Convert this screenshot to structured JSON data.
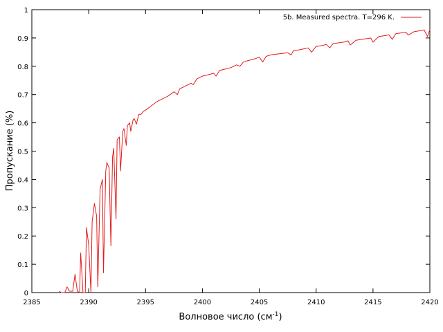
{
  "chart_data": {
    "type": "line",
    "title": "",
    "xlabel": "Волновое число (см",
    "xlabel_sup": "-1",
    "xlabel_tail": ")",
    "ylabel": "Пропускание (%)",
    "xlim": [
      2385,
      2420
    ],
    "ylim": [
      0,
      1
    ],
    "x_ticks": [
      2385,
      2390,
      2395,
      2400,
      2405,
      2410,
      2415,
      2420
    ],
    "y_ticks": [
      0,
      0.1,
      0.2,
      0.3,
      0.4,
      0.5,
      0.6,
      0.7,
      0.8,
      0.9,
      1
    ],
    "y_tick_labels": [
      "0",
      "0.1",
      "0.2",
      "0.3",
      "0.4",
      "0.5",
      "0.6",
      "0.7",
      "0.8",
      "0.9",
      "1"
    ],
    "grid": false,
    "legend_position": "top-right",
    "series": [
      {
        "name": "5b. Measured spectra. T=296 K.",
        "color": "#e41a1c",
        "x": [
          2387.4,
          2387.6,
          2387.9,
          2388.1,
          2388.3,
          2388.4,
          2388.6,
          2388.8,
          2389.0,
          2389.2,
          2389.3,
          2389.5,
          2389.7,
          2389.8,
          2390.0,
          2390.2,
          2390.3,
          2390.5,
          2390.7,
          2390.8,
          2391.0,
          2391.2,
          2391.3,
          2391.5,
          2391.6,
          2391.8,
          2391.95,
          2392.1,
          2392.2,
          2392.4,
          2392.5,
          2392.7,
          2392.8,
          2393.0,
          2393.1,
          2393.3,
          2393.4,
          2393.6,
          2393.7,
          2393.9,
          2394.0,
          2394.2,
          2394.4,
          2394.6,
          2394.8,
          2395.0,
          2395.5,
          2396.0,
          2396.5,
          2397.0,
          2397.5,
          2397.8,
          2398.0,
          2398.5,
          2399.0,
          2399.2,
          2399.5,
          2400.0,
          2400.5,
          2401.0,
          2401.2,
          2401.5,
          2402.0,
          2402.5,
          2403.0,
          2403.3,
          2403.6,
          2404.0,
          2404.5,
          2405.0,
          2405.3,
          2405.6,
          2406.0,
          2406.5,
          2407.0,
          2407.5,
          2407.8,
          2408.0,
          2408.5,
          2409.0,
          2409.3,
          2409.6,
          2410.0,
          2410.5,
          2410.9,
          2411.2,
          2411.5,
          2412.0,
          2412.5,
          2412.8,
          2413.0,
          2413.5,
          2414.0,
          2414.5,
          2414.8,
          2415.0,
          2415.5,
          2416.0,
          2416.4,
          2416.7,
          2417.0,
          2417.5,
          2417.9,
          2418.1,
          2418.3,
          2418.6,
          2419.0,
          2419.5,
          2419.8,
          2420.0
        ],
        "values": [
          0.005,
          0.0,
          0.0,
          0.02,
          0.005,
          0.005,
          0.005,
          0.065,
          0.005,
          0.0,
          0.14,
          0.0,
          0.0,
          0.23,
          0.17,
          0.0,
          0.25,
          0.315,
          0.27,
          0.02,
          0.365,
          0.4,
          0.07,
          0.43,
          0.46,
          0.44,
          0.165,
          0.48,
          0.51,
          0.26,
          0.54,
          0.55,
          0.43,
          0.57,
          0.58,
          0.52,
          0.59,
          0.6,
          0.57,
          0.61,
          0.615,
          0.595,
          0.63,
          0.63,
          0.64,
          0.645,
          0.66,
          0.675,
          0.685,
          0.695,
          0.71,
          0.7,
          0.72,
          0.73,
          0.74,
          0.735,
          0.755,
          0.765,
          0.77,
          0.775,
          0.765,
          0.785,
          0.79,
          0.795,
          0.805,
          0.8,
          0.815,
          0.82,
          0.825,
          0.832,
          0.815,
          0.835,
          0.84,
          0.843,
          0.845,
          0.848,
          0.84,
          0.855,
          0.858,
          0.862,
          0.865,
          0.85,
          0.87,
          0.873,
          0.877,
          0.865,
          0.88,
          0.883,
          0.886,
          0.89,
          0.875,
          0.892,
          0.895,
          0.898,
          0.9,
          0.885,
          0.905,
          0.908,
          0.911,
          0.895,
          0.915,
          0.918,
          0.92,
          0.91,
          0.915,
          0.922,
          0.925,
          0.928,
          0.905,
          0.93
        ]
      }
    ]
  }
}
